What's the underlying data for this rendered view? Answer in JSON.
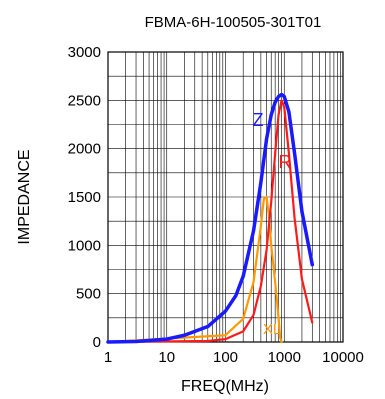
{
  "chart_data": {
    "type": "line",
    "title": "FBMA-6H-100505-301T01",
    "xlabel": "FREQ(MHz)",
    "ylabel": "IMPEDANCE",
    "x_scale": "log",
    "xlim": [
      1,
      10000
    ],
    "ylim": [
      0,
      3000
    ],
    "x_ticks": [
      1,
      10,
      100,
      1000,
      10000
    ],
    "x_tick_labels": [
      "1",
      "10",
      "100",
      "1000",
      "10000"
    ],
    "y_ticks": [
      0,
      500,
      1000,
      1500,
      2000,
      2500,
      3000
    ],
    "y_tick_labels": [
      "0",
      "500",
      "1000",
      "1500",
      "2000",
      "2500",
      "3000"
    ],
    "grid": true,
    "series": [
      {
        "name": "Z",
        "color": "#1a1aff",
        "x": [
          1,
          3,
          10,
          20,
          50,
          100,
          150,
          200,
          300,
          400,
          500,
          600,
          700,
          800,
          900,
          1000,
          1200,
          1500,
          2000,
          3000
        ],
        "y": [
          0,
          5,
          30,
          70,
          160,
          320,
          480,
          680,
          1150,
          1650,
          2100,
          2350,
          2480,
          2540,
          2560,
          2540,
          2380,
          1950,
          1350,
          800
        ]
      },
      {
        "name": "R",
        "color": "#ff1a1a",
        "x": [
          1,
          50,
          100,
          200,
          300,
          400,
          500,
          600,
          700,
          800,
          900,
          1000,
          1200,
          1500,
          2000,
          3000
        ],
        "y": [
          0,
          10,
          30,
          110,
          280,
          580,
          950,
          1450,
          1950,
          2350,
          2500,
          2430,
          1950,
          1280,
          650,
          200
        ]
      },
      {
        "name": "XL",
        "color": "#ff9900",
        "x": [
          1,
          100,
          200,
          300,
          400,
          450,
          500,
          550,
          600,
          700,
          800,
          850,
          900
        ],
        "y": [
          0,
          70,
          240,
          620,
          1200,
          1480,
          1500,
          1300,
          1000,
          620,
          250,
          50,
          0
        ]
      }
    ]
  }
}
